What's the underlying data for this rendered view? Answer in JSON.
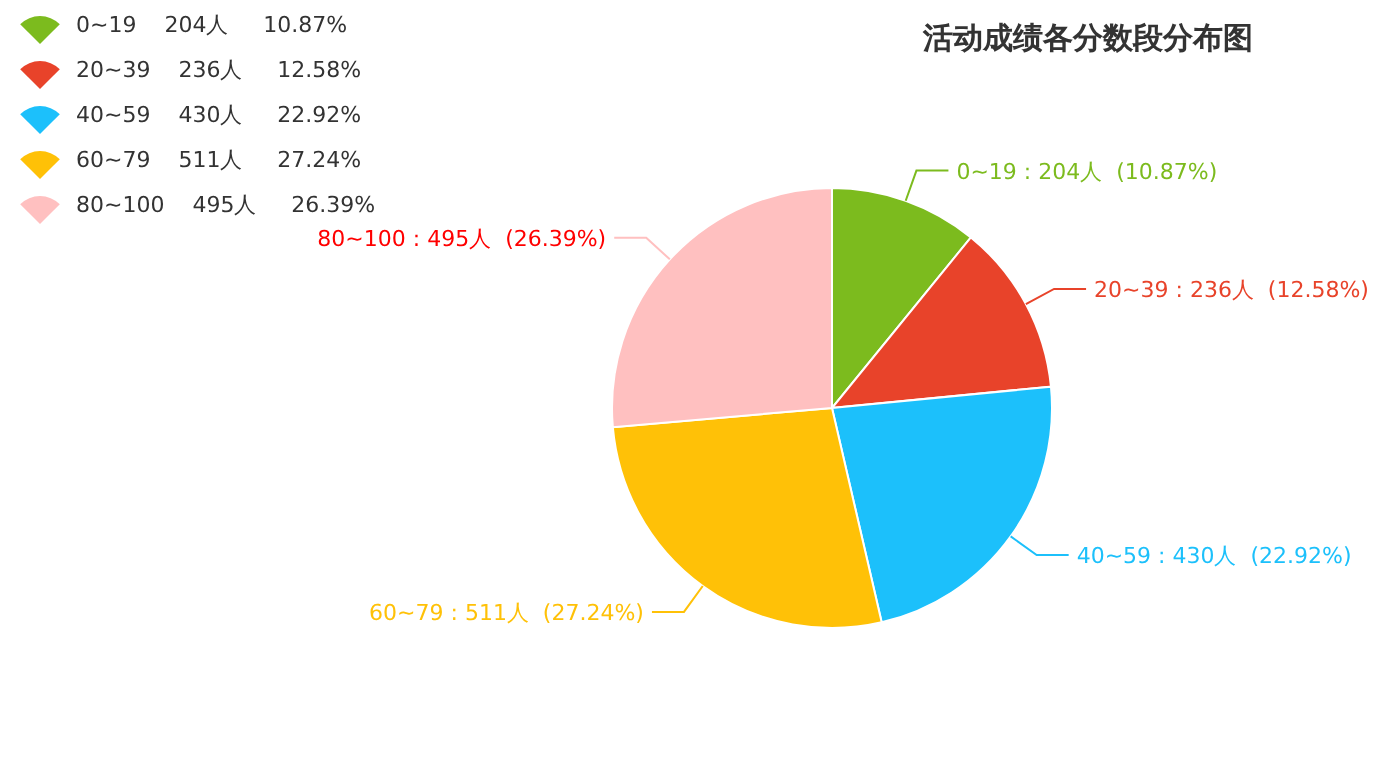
{
  "chart_data": {
    "type": "pie",
    "title": "活动成绩各分数段分布图",
    "categories": [
      "0~19    204人     10.87%",
      "20~39    236人     12.58%",
      "40~59    430人     22.92%",
      "60~79    511人     27.24%",
      "80~100    495人     26.39%"
    ],
    "values": [
      204,
      236,
      430,
      511,
      495
    ],
    "colors": [
      "#7cbb1e",
      "#e8432a",
      "#1cc0fb",
      "#ffc107",
      "#ffc0c0"
    ],
    "value_labels": [
      "0~19 : 204人  (10.87%)",
      "20~39 : 236人  (12.58%)",
      "40~59 : 430人  (22.92%)",
      "60~79 : 511人  (27.24%)",
      "80~100 : 495人  (26.39%)"
    ],
    "legend": "top left"
  }
}
